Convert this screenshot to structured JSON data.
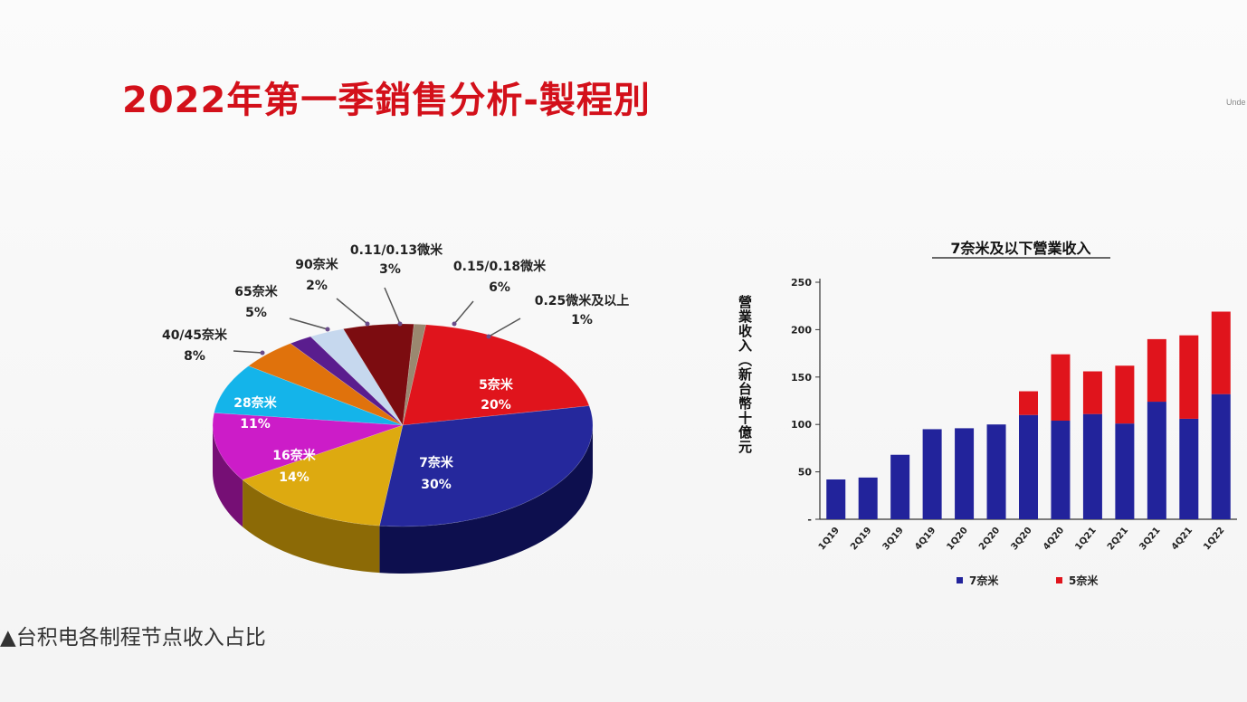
{
  "slide": {
    "title": "2022年第一季銷售分析-製程別",
    "corner_text": "Unde",
    "caption": "▲台积电各制程节点收入占比"
  },
  "chart_data": [
    {
      "type": "pie",
      "slices": [
        {
          "label": "5奈米",
          "value": 20,
          "display": "20%",
          "color": "#e0141c",
          "side": "#8e0a0e"
        },
        {
          "label": "7奈米",
          "value": 30,
          "display": "30%",
          "color": "#25289c",
          "side": "#0d0f4e"
        },
        {
          "label": "16奈米",
          "value": 14,
          "display": "14%",
          "color": "#ddaa10",
          "side": "#8c6a06"
        },
        {
          "label": "28奈米",
          "value": 11,
          "display": "11%",
          "color": "#cc1cc8",
          "side": "#760f75"
        },
        {
          "label": "40/45奈米",
          "value": 8,
          "display": "8%",
          "color": "#14b4ea",
          "side": "#0a6a8c"
        },
        {
          "label": "65奈米",
          "value": 5,
          "display": "5%",
          "color": "#e0720c",
          "side": "#874406"
        },
        {
          "label": "90奈米",
          "value": 2,
          "display": "2%",
          "color": "#5a1d8e",
          "side": "#300f4e"
        },
        {
          "label": "0.11/0.13微米",
          "value": 3,
          "display": "3%",
          "color": "#c6d8ee",
          "side": "#7d8ea6"
        },
        {
          "label": "0.15/0.18微米",
          "value": 6,
          "display": "6%",
          "color": "#7c0c10",
          "side": "#400608"
        },
        {
          "label": "0.25微米及以上",
          "value": 1,
          "display": "1%",
          "color": "#9a8870",
          "side": "#5b4f40"
        }
      ]
    },
    {
      "type": "bar",
      "stacked": true,
      "title": "7奈米及以下營業收入",
      "ylabel": "營業收入（新台幣十億元",
      "ylim": [
        0,
        250
      ],
      "yticks": [
        "250",
        "200",
        "150",
        "100",
        "50",
        "-"
      ],
      "categories": [
        "1Q19",
        "2Q19",
        "3Q19",
        "4Q19",
        "1Q20",
        "2Q20",
        "3Q20",
        "4Q20",
        "1Q21",
        "2Q21",
        "3Q21",
        "4Q21",
        "1Q22"
      ],
      "series": [
        {
          "name": "7奈米",
          "color": "#22239b",
          "values": [
            42,
            44,
            68,
            95,
            96,
            100,
            110,
            104,
            111,
            101,
            124,
            106,
            132
          ]
        },
        {
          "name": "5奈米",
          "color": "#e0141c",
          "values": [
            0,
            0,
            0,
            0,
            0,
            0,
            25,
            70,
            45,
            61,
            66,
            88,
            87
          ]
        }
      ],
      "legend": "bottom"
    }
  ]
}
